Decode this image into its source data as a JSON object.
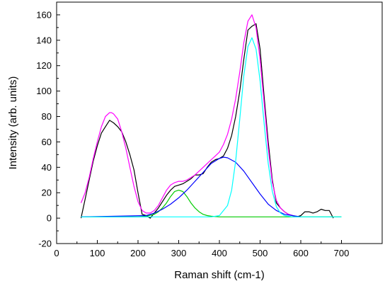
{
  "chart_data": {
    "type": "line",
    "title": "",
    "xlabel": "Raman shift (cm-1)",
    "ylabel": "Intensity (arb. units)",
    "xlim": [
      0,
      800
    ],
    "ylim": [
      -20,
      170
    ],
    "xticks": [
      0,
      100,
      200,
      300,
      400,
      500,
      600,
      700
    ],
    "yticks": [
      -20,
      0,
      20,
      40,
      60,
      80,
      100,
      120,
      140,
      160
    ],
    "grid": false,
    "legend": "none",
    "series": [
      {
        "color": "#000000",
        "x": [
          60,
          70,
          80,
          90,
          100,
          110,
          120,
          130,
          140,
          150,
          160,
          170,
          180,
          190,
          200,
          210,
          220,
          230,
          240,
          250,
          260,
          270,
          280,
          290,
          300,
          310,
          320,
          330,
          340,
          350,
          360,
          370,
          380,
          390,
          400,
          410,
          420,
          430,
          440,
          450,
          460,
          470,
          480,
          490,
          500,
          510,
          520,
          530,
          540,
          550,
          560,
          570,
          580,
          590,
          600,
          610,
          620,
          630,
          640,
          650,
          660,
          670,
          680
        ],
        "y": [
          0,
          15,
          30,
          45,
          57,
          67,
          72,
          77,
          75,
          72,
          68,
          60,
          50,
          38,
          20,
          3,
          2,
          0,
          4,
          8,
          13,
          18,
          22,
          25,
          26,
          27,
          29,
          31,
          34,
          34,
          35,
          40,
          44,
          46,
          47,
          49,
          55,
          65,
          80,
          100,
          125,
          148,
          151,
          153,
          133,
          95,
          60,
          30,
          12,
          8,
          5,
          3,
          2,
          1,
          2,
          5,
          5,
          4,
          5,
          7,
          6,
          6,
          0
        ]
      },
      {
        "color": "#ff00ff",
        "x": [
          60,
          70,
          80,
          90,
          100,
          110,
          120,
          130,
          135,
          140,
          150,
          160,
          170,
          180,
          190,
          200,
          210,
          220,
          230,
          240,
          250,
          260,
          270,
          280,
          290,
          300,
          310,
          320,
          330,
          340,
          350,
          360,
          370,
          380,
          390,
          400,
          410,
          420,
          430,
          440,
          450,
          460,
          470,
          480,
          490,
          500,
          510,
          520,
          530,
          540,
          550,
          560,
          570,
          580,
          590
        ],
        "y": [
          12,
          20,
          32,
          47,
          60,
          72,
          80,
          83,
          83,
          82,
          78,
          68,
          55,
          40,
          25,
          13,
          6,
          4,
          4,
          6,
          10,
          16,
          22,
          26,
          28,
          29,
          29,
          30,
          32,
          34,
          37,
          40,
          43,
          46,
          49,
          52,
          58,
          66,
          78,
          94,
          115,
          138,
          155,
          160,
          150,
          125,
          90,
          55,
          28,
          14,
          8,
          5,
          3,
          2,
          1
        ]
      },
      {
        "color": "#00cc00",
        "x": [
          60,
          200,
          220,
          240,
          250,
          260,
          270,
          280,
          290,
          300,
          310,
          320,
          330,
          340,
          350,
          360,
          370,
          380,
          400,
          600,
          700
        ],
        "y": [
          1,
          1,
          1.5,
          3,
          5,
          8,
          12,
          17,
          21,
          22,
          21,
          17,
          12,
          8,
          5,
          3,
          2,
          1.5,
          1,
          1,
          1
        ]
      },
      {
        "color": "#0000ff",
        "x": [
          60,
          220,
          240,
          260,
          280,
          300,
          320,
          340,
          360,
          380,
          400,
          410,
          420,
          440,
          460,
          480,
          500,
          520,
          540,
          560,
          580,
          600
        ],
        "y": [
          1,
          2,
          4,
          7,
          11,
          16,
          22,
          29,
          36,
          43,
          47,
          48,
          47.5,
          44,
          37,
          28,
          19,
          11,
          6,
          3,
          2,
          1
        ]
      },
      {
        "color": "#00ffff",
        "x": [
          60,
          380,
          400,
          420,
          430,
          440,
          450,
          460,
          470,
          480,
          490,
          500,
          510,
          520,
          530,
          540,
          550,
          560,
          580,
          700
        ],
        "y": [
          1,
          1,
          2,
          10,
          22,
          45,
          78,
          112,
          135,
          142,
          133,
          108,
          74,
          43,
          21,
          9,
          4,
          2,
          1,
          1
        ]
      }
    ]
  }
}
